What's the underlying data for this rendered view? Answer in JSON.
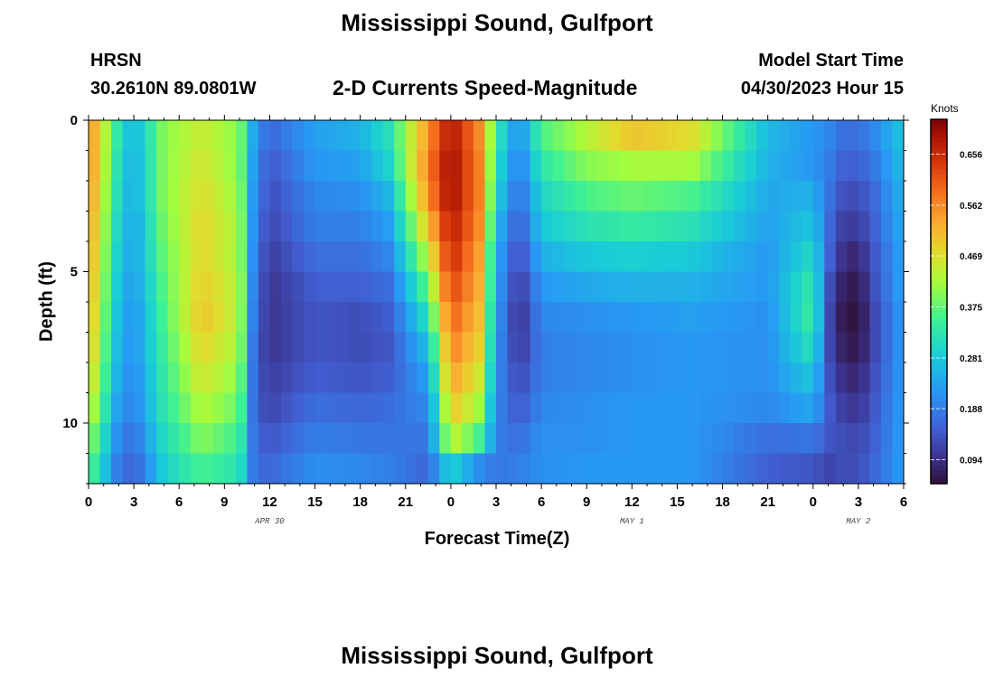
{
  "page": {
    "title": "Mississippi Sound, Gulfport",
    "station_id": "HRSN",
    "coordinates": "30.2610N  89.0801W",
    "plot_title": "2-D Currents Speed-Magnitude",
    "model_start_label": "Model Start Time",
    "model_start_value": "04/30/2023 Hour 15",
    "bottom_title": "Mississippi Sound, Gulfport"
  },
  "chart_data": {
    "type": "heatmap",
    "title": "2-D Currents Speed-Magnitude",
    "xlabel": "Forecast Time(Z)",
    "ylabel": "Depth (ft)",
    "x_tick_labels": [
      "0",
      "3",
      "6",
      "9",
      "12",
      "15",
      "18",
      "21",
      "0",
      "3",
      "6",
      "9",
      "12",
      "15",
      "18",
      "21",
      "0",
      "3",
      "6"
    ],
    "x_range_hours": [
      0,
      54
    ],
    "date_labels": [
      {
        "label": "APR 30",
        "hour": 12
      },
      {
        "label": "MAY 1",
        "hour": 36
      },
      {
        "label": "MAY 2",
        "hour": 51
      }
    ],
    "y_tick_labels": [
      "0",
      "5",
      "10"
    ],
    "y_range_ft": [
      0,
      12
    ],
    "y_inverted": true,
    "colorbar": {
      "unit": "Knots",
      "min": 0.05,
      "max": 0.72,
      "tick_labels": [
        "0.656",
        "0.562",
        "0.469",
        "0.375",
        "0.281",
        "0.188",
        "0.094"
      ],
      "ticks": [
        0.656,
        0.562,
        0.469,
        0.375,
        0.281,
        0.188,
        0.094
      ],
      "colormap": "turbo"
    },
    "grid": {
      "time_step_hours": 0.75,
      "depth_levels_ft": [
        0.5,
        1.5,
        2.5,
        3.5,
        4.5,
        5.5,
        6.5,
        7.5,
        8.5,
        9.5,
        10.5,
        11.5
      ],
      "anchor_hours": [
        0,
        2,
        3,
        5,
        7.5,
        10,
        11,
        12,
        15,
        18,
        20,
        22.5,
        24,
        26,
        27,
        28.5,
        30,
        33,
        36,
        40,
        45,
        48,
        49,
        50,
        51,
        52,
        54
      ],
      "speed_profiles_knots": [
        [
          0.57,
          0.57,
          0.56,
          0.55,
          0.54,
          0.53,
          0.52,
          0.51,
          0.49,
          0.46,
          0.42,
          0.38
        ],
        [
          0.32,
          0.31,
          0.3,
          0.29,
          0.28,
          0.27,
          0.26,
          0.25,
          0.24,
          0.22,
          0.2,
          0.18
        ],
        [
          0.25,
          0.24,
          0.24,
          0.23,
          0.23,
          0.22,
          0.21,
          0.21,
          0.2,
          0.19,
          0.17,
          0.15
        ],
        [
          0.4,
          0.4,
          0.4,
          0.39,
          0.38,
          0.37,
          0.36,
          0.35,
          0.34,
          0.33,
          0.31,
          0.29
        ],
        [
          0.45,
          0.46,
          0.47,
          0.48,
          0.48,
          0.49,
          0.5,
          0.48,
          0.46,
          0.43,
          0.4,
          0.36
        ],
        [
          0.4,
          0.4,
          0.41,
          0.42,
          0.42,
          0.43,
          0.43,
          0.42,
          0.4,
          0.38,
          0.35,
          0.32
        ],
        [
          0.22,
          0.21,
          0.2,
          0.19,
          0.18,
          0.17,
          0.16,
          0.15,
          0.15,
          0.15,
          0.16,
          0.17
        ],
        [
          0.16,
          0.14,
          0.13,
          0.12,
          0.11,
          0.1,
          0.1,
          0.1,
          0.11,
          0.12,
          0.14,
          0.16
        ],
        [
          0.23,
          0.22,
          0.2,
          0.19,
          0.17,
          0.15,
          0.14,
          0.14,
          0.15,
          0.17,
          0.19,
          0.21
        ],
        [
          0.25,
          0.23,
          0.21,
          0.19,
          0.17,
          0.15,
          0.13,
          0.13,
          0.14,
          0.16,
          0.18,
          0.2
        ],
        [
          0.32,
          0.3,
          0.26,
          0.23,
          0.2,
          0.17,
          0.15,
          0.14,
          0.15,
          0.17,
          0.18,
          0.19
        ],
        [
          0.55,
          0.57,
          0.55,
          0.5,
          0.44,
          0.38,
          0.32,
          0.27,
          0.23,
          0.2,
          0.18,
          0.16
        ],
        [
          0.69,
          0.7,
          0.7,
          0.68,
          0.66,
          0.63,
          0.6,
          0.57,
          0.54,
          0.5,
          0.45,
          0.3
        ],
        [
          0.55,
          0.56,
          0.56,
          0.55,
          0.53,
          0.52,
          0.5,
          0.48,
          0.45,
          0.41,
          0.35,
          0.2
        ],
        [
          0.34,
          0.32,
          0.3,
          0.27,
          0.25,
          0.24,
          0.23,
          0.22,
          0.21,
          0.2,
          0.19,
          0.18
        ],
        [
          0.2,
          0.18,
          0.16,
          0.14,
          0.12,
          0.1,
          0.09,
          0.1,
          0.12,
          0.14,
          0.17,
          0.19
        ],
        [
          0.36,
          0.33,
          0.3,
          0.28,
          0.25,
          0.22,
          0.2,
          0.19,
          0.19,
          0.2,
          0.21,
          0.21
        ],
        [
          0.43,
          0.4,
          0.36,
          0.32,
          0.28,
          0.24,
          0.21,
          0.2,
          0.2,
          0.21,
          0.21,
          0.22
        ],
        [
          0.5,
          0.42,
          0.38,
          0.34,
          0.29,
          0.25,
          0.22,
          0.21,
          0.21,
          0.22,
          0.22,
          0.22
        ],
        [
          0.47,
          0.42,
          0.36,
          0.32,
          0.28,
          0.25,
          0.23,
          0.22,
          0.22,
          0.22,
          0.22,
          0.22
        ],
        [
          0.26,
          0.25,
          0.24,
          0.23,
          0.22,
          0.22,
          0.21,
          0.21,
          0.21,
          0.2,
          0.17,
          0.15
        ],
        [
          0.22,
          0.22,
          0.25,
          0.28,
          0.31,
          0.34,
          0.35,
          0.32,
          0.28,
          0.24,
          0.18,
          0.14
        ],
        [
          0.2,
          0.19,
          0.18,
          0.17,
          0.16,
          0.14,
          0.13,
          0.13,
          0.14,
          0.15,
          0.14,
          0.12
        ],
        [
          0.17,
          0.15,
          0.13,
          0.11,
          0.09,
          0.07,
          0.06,
          0.07,
          0.09,
          0.11,
          0.13,
          0.13
        ],
        [
          0.17,
          0.15,
          0.13,
          0.11,
          0.08,
          0.06,
          0.05,
          0.06,
          0.08,
          0.1,
          0.12,
          0.13
        ],
        [
          0.2,
          0.18,
          0.16,
          0.15,
          0.14,
          0.13,
          0.12,
          0.12,
          0.13,
          0.14,
          0.15,
          0.16
        ],
        [
          0.28,
          0.27,
          0.26,
          0.25,
          0.24,
          0.24,
          0.23,
          0.23,
          0.23,
          0.23,
          0.23,
          0.23
        ]
      ]
    }
  }
}
